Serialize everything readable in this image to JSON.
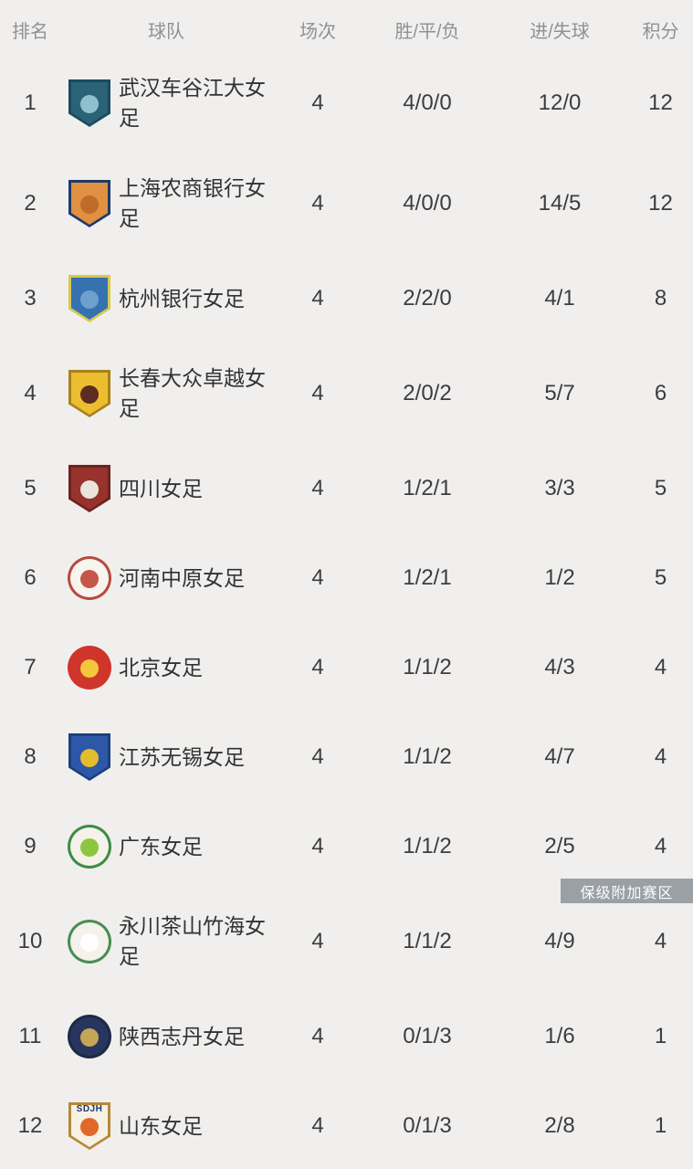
{
  "colors": {
    "page_bg": "#f0efed",
    "header_text": "#8d9196",
    "row_text": "#3a3d40",
    "relegation_bg": "#9aa0a6",
    "relegation_text": "#fdfdfd"
  },
  "annotation": {
    "relegation_label": "保级附加赛区"
  },
  "table": {
    "columns": {
      "rank": "排名",
      "team": "球队",
      "played": "场次",
      "wdl": "胜/平/负",
      "goals": "进/失球",
      "points": "积分"
    },
    "rows": [
      {
        "rank": "1",
        "team": "武汉车谷江大女足",
        "played": "4",
        "wdl": "4/0/0",
        "goals": "12/0",
        "points": "12",
        "badge": {
          "icon": "wuhan-jiangda-crest-icon",
          "shape": "shield",
          "border": "#1c4a5e",
          "body": "#2a6278",
          "center": "#8fc0cf",
          "crown": true
        }
      },
      {
        "rank": "2",
        "team": "上海农商银行女足",
        "played": "4",
        "wdl": "4/0/0",
        "goals": "14/5",
        "points": "12",
        "badge": {
          "icon": "shanghai-shengli-crest-icon",
          "shape": "shield",
          "border": "#20396b",
          "body": "#df9040",
          "center": "#c06a2b"
        }
      },
      {
        "rank": "3",
        "team": "杭州银行女足",
        "played": "4",
        "wdl": "2/2/0",
        "goals": "4/1",
        "points": "8",
        "badge": {
          "icon": "hangzhou-bank-crest-icon",
          "shape": "shield",
          "border": "#d9c94e",
          "body": "#3672b0",
          "center": "#6f9fce"
        }
      },
      {
        "rank": "4",
        "team": "长春大众卓越女足",
        "played": "4",
        "wdl": "2/0/2",
        "goals": "5/7",
        "points": "6",
        "badge": {
          "icon": "changchun-zhuoyue-crest-icon",
          "shape": "shield",
          "border": "#a9811c",
          "body": "#ecbe2f",
          "center": "#5a2c22"
        }
      },
      {
        "rank": "5",
        "team": "四川女足",
        "played": "4",
        "wdl": "1/2/1",
        "goals": "3/3",
        "points": "5",
        "badge": {
          "icon": "sichuan-crest-icon",
          "shape": "shield",
          "border": "#6e2220",
          "body": "#97322c",
          "center": "#e9e5da"
        }
      },
      {
        "rank": "6",
        "team": "河南中原女足",
        "played": "4",
        "wdl": "1/2/1",
        "goals": "1/2",
        "points": "5",
        "badge": {
          "icon": "henan-zhongyuan-crest-icon",
          "shape": "circle",
          "border": "#b84a3e",
          "body": "#f8f5f0",
          "center": "#c4574a"
        }
      },
      {
        "rank": "7",
        "team": "北京女足",
        "played": "4",
        "wdl": "1/1/2",
        "goals": "4/3",
        "points": "4",
        "badge": {
          "icon": "beijing-crest-icon",
          "shape": "circle",
          "border": "#cf352a",
          "body": "#cf352a",
          "center": "#f2c73b"
        }
      },
      {
        "rank": "8",
        "team": "江苏无锡女足",
        "played": "4",
        "wdl": "1/1/2",
        "goals": "4/7",
        "points": "4",
        "badge": {
          "icon": "jiangsu-wuxi-crest-icon",
          "shape": "shield",
          "border": "#1d3f7e",
          "body": "#2c58a7",
          "center": "#e4bd2c"
        }
      },
      {
        "rank": "9",
        "team": "广东女足",
        "played": "4",
        "wdl": "1/1/2",
        "goals": "2/5",
        "points": "4",
        "badge": {
          "icon": "guangdong-crest-icon",
          "shape": "circle",
          "border": "#3d8c44",
          "body": "#f4f2ea",
          "center": "#8cc63e"
        }
      },
      {
        "rank": "10",
        "team": "永川茶山竹海女足",
        "played": "4",
        "wdl": "1/1/2",
        "goals": "4/9",
        "points": "4",
        "badge": {
          "icon": "yongchuan-chashan-crest-icon",
          "shape": "circle",
          "border": "#4a8c52",
          "body": "#f4f2ea",
          "center": "#ffffff"
        }
      },
      {
        "rank": "11",
        "team": "陕西志丹女足",
        "played": "4",
        "wdl": "0/1/3",
        "goals": "1/6",
        "points": "1",
        "badge": {
          "icon": "shaanxi-zhidan-crest-icon",
          "shape": "circle",
          "border": "#1d2946",
          "body": "#28355e",
          "center": "#c5a558"
        }
      },
      {
        "rank": "12",
        "team": "山东女足",
        "played": "4",
        "wdl": "0/1/3",
        "goals": "2/8",
        "points": "1",
        "badge": {
          "icon": "shandong-crest-icon",
          "shape": "shield",
          "border": "#b5893a",
          "body": "#f6f1e3",
          "center": "#e0682b",
          "label": "SDJH",
          "labelColor": "#1f3a6e"
        }
      }
    ]
  }
}
